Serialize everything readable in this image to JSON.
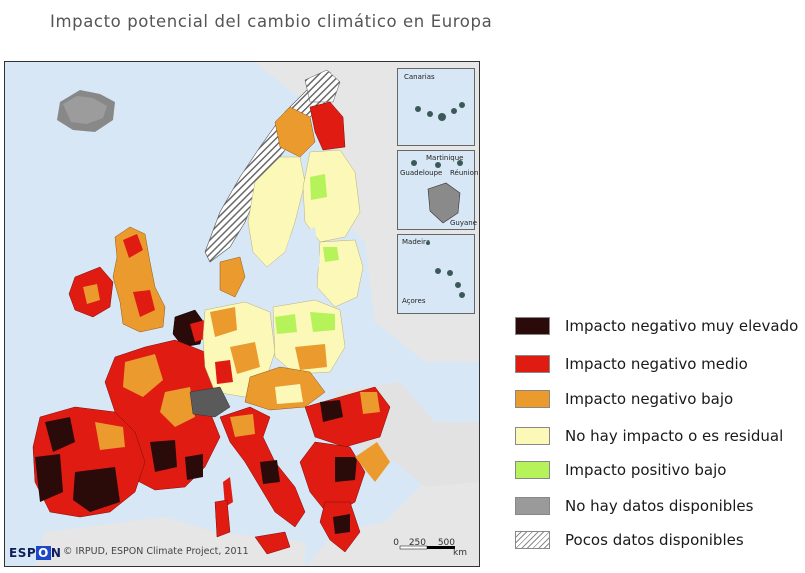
{
  "title": "Impacto potencial del cambio climático en Europa",
  "map": {
    "credit": "© IRPUD, ESPON Climate Project, 2011",
    "logo_text_before": "ESP",
    "logo_text_highlight": "O",
    "logo_text_after": "N",
    "scale": {
      "labels": [
        "0",
        "250",
        "500"
      ],
      "unit": "km"
    },
    "insets": [
      {
        "label": "Canarias"
      },
      {
        "label": "Martinique"
      },
      {
        "label": "Guadeloupe"
      },
      {
        "label": "Réunion"
      },
      {
        "label": "Guyane"
      },
      {
        "label": "Madeira"
      },
      {
        "label": "Açores"
      }
    ]
  },
  "legend": {
    "items": [
      {
        "label": "Impacto negativo muy elevado",
        "color": "#2b0a0a"
      },
      {
        "label": "Impacto negativo medio",
        "color": "#e01b12"
      },
      {
        "label": "Impacto negativo bajo",
        "color": "#eb9a2e"
      },
      {
        "label": "No hay impacto o es residual",
        "color": "#fbf8b8"
      },
      {
        "label": "Impacto positivo bajo",
        "color": "#b6f25a"
      },
      {
        "label": "No hay datos disponibles",
        "color": "#9a9a9a"
      },
      {
        "label": "Pocos datos disponibles",
        "color": "hatch"
      }
    ]
  }
}
